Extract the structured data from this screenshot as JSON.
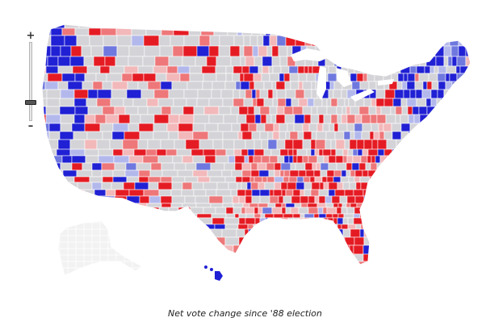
{
  "caption": "Net vote change since '88 election",
  "zoom_control": {
    "zoom_in_label": "+",
    "zoom_out_label": "–",
    "level": 0.82
  },
  "legend_colors": {
    "strong_republican": "#e51b23",
    "moderate_republican": "#ee7779",
    "light_republican": "#f2b8ba",
    "neutral": "#d4d4d8",
    "light_democrat": "#b3b8ec",
    "moderate_democrat": "#6f78de",
    "strong_democrat": "#2020d4",
    "inactive_region": "#f2f2f2",
    "county_border": "#ffffff"
  },
  "regions": [
    {
      "name": "Alaska",
      "shown": "inactive"
    },
    {
      "name": "Hawaii",
      "shown": "strong_democrat"
    }
  ]
}
